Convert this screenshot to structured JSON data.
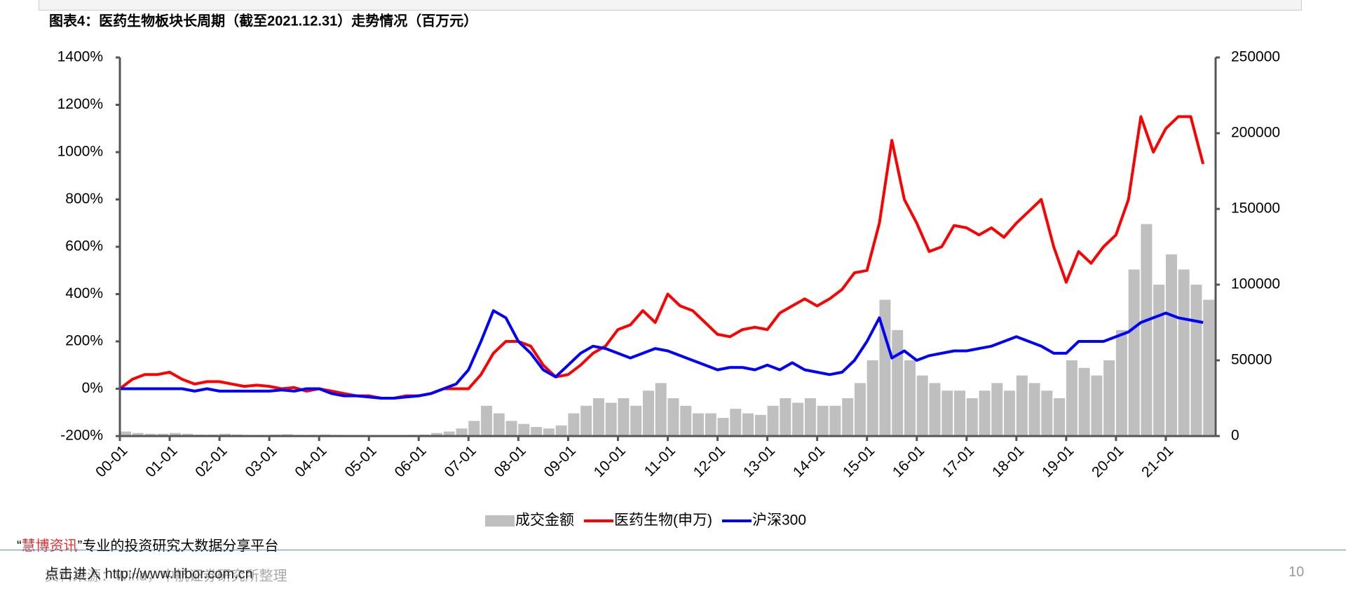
{
  "chart_data": {
    "type": "line",
    "title": "图表4：医药生物板块长周期（截至2021.12.31）走势情况（百万元）",
    "categories": [
      "00-01",
      null,
      null,
      null,
      "01-01",
      null,
      null,
      null,
      "02-01",
      null,
      null,
      null,
      "03-01",
      null,
      null,
      null,
      "04-01",
      null,
      null,
      null,
      "05-01",
      null,
      null,
      null,
      "06-01",
      null,
      null,
      null,
      "07-01",
      null,
      null,
      null,
      "08-01",
      null,
      null,
      null,
      "09-01",
      null,
      null,
      null,
      "10-01",
      null,
      null,
      null,
      "11-01",
      null,
      null,
      null,
      "12-01",
      null,
      null,
      null,
      "13-01",
      null,
      null,
      null,
      "14-01",
      null,
      null,
      null,
      "15-01",
      null,
      null,
      null,
      "16-01",
      null,
      null,
      null,
      "17-01",
      null,
      null,
      null,
      "18-01",
      null,
      null,
      null,
      "19-01",
      null,
      null,
      null,
      "20-01",
      null,
      null,
      null,
      "21-01",
      null,
      null,
      null
    ],
    "series": [
      {
        "name": "成交金额",
        "type": "bar",
        "axis": "y2",
        "color": "#bfbfbf",
        "values": [
          3000,
          2000,
          1500,
          1500,
          2000,
          1500,
          1000,
          1000,
          1500,
          1000,
          800,
          800,
          1000,
          1200,
          800,
          800,
          1000,
          800,
          600,
          600,
          500,
          500,
          600,
          800,
          1000,
          2000,
          3000,
          5000,
          10000,
          20000,
          15000,
          10000,
          8000,
          6000,
          5000,
          7000,
          15000,
          20000,
          25000,
          22000,
          25000,
          20000,
          30000,
          35000,
          25000,
          20000,
          15000,
          15000,
          12000,
          18000,
          15000,
          14000,
          20000,
          25000,
          22000,
          25000,
          20000,
          20000,
          25000,
          35000,
          50000,
          90000,
          70000,
          50000,
          40000,
          35000,
          30000,
          30000,
          25000,
          30000,
          35000,
          30000,
          40000,
          35000,
          30000,
          25000,
          50000,
          45000,
          40000,
          50000,
          70000,
          110000,
          140000,
          100000,
          120000,
          110000,
          100000,
          90000
        ]
      },
      {
        "name": "医药生物(申万)",
        "type": "line",
        "color": "#ff0000",
        "values": [
          0,
          40,
          60,
          60,
          70,
          40,
          20,
          30,
          30,
          20,
          10,
          15,
          10,
          0,
          5,
          -10,
          0,
          -10,
          -20,
          -30,
          -30,
          -40,
          -40,
          -30,
          -30,
          -20,
          0,
          0,
          0,
          60,
          150,
          200,
          200,
          180,
          100,
          50,
          60,
          100,
          150,
          180,
          250,
          270,
          330,
          280,
          400,
          350,
          330,
          280,
          230,
          220,
          250,
          260,
          250,
          320,
          350,
          380,
          350,
          380,
          420,
          490,
          500,
          700,
          1050,
          800,
          700,
          580,
          600,
          690,
          680,
          650,
          680,
          640,
          700,
          750,
          800,
          600,
          450,
          580,
          530,
          600,
          650,
          800,
          1150,
          1000,
          1100,
          1150,
          1150,
          950
        ]
      },
      {
        "name": "沪深300",
        "type": "line",
        "color": "#0000ff",
        "values": [
          0,
          0,
          0,
          0,
          0,
          0,
          -10,
          0,
          -10,
          -10,
          -10,
          -10,
          -10,
          -5,
          -10,
          0,
          0,
          -20,
          -30,
          -30,
          -35,
          -40,
          -40,
          -35,
          -30,
          -20,
          0,
          20,
          80,
          200,
          330,
          300,
          200,
          150,
          80,
          50,
          100,
          150,
          180,
          170,
          150,
          130,
          150,
          170,
          160,
          140,
          120,
          100,
          80,
          90,
          90,
          80,
          100,
          80,
          110,
          80,
          70,
          60,
          70,
          120,
          200,
          300,
          130,
          160,
          120,
          140,
          150,
          160,
          160,
          170,
          180,
          200,
          220,
          200,
          180,
          150,
          150,
          200,
          200,
          200,
          220,
          240,
          280,
          300,
          320,
          300,
          290,
          280
        ]
      }
    ],
    "ylim": [
      -200,
      1400
    ],
    "yticks": [
      {
        "value": -200,
        "label": "-200%"
      },
      {
        "value": 0,
        "label": "0%"
      },
      {
        "value": 200,
        "label": "200%"
      },
      {
        "value": 400,
        "label": "400%"
      },
      {
        "value": 600,
        "label": "600%"
      },
      {
        "value": 800,
        "label": "800%"
      },
      {
        "value": 1000,
        "label": "1000%"
      },
      {
        "value": 1200,
        "label": "1200%"
      },
      {
        "value": 1400,
        "label": "1400%"
      }
    ],
    "y2lim": [
      0,
      250000
    ],
    "y2ticks": [
      0,
      50000,
      100000,
      150000,
      200000,
      250000
    ],
    "grid": false,
    "legend": "bottom"
  },
  "footer": {
    "tagline": [
      "“",
      "慧博资讯",
      "”专业的投资研究大数据分享平台"
    ],
    "link_prompt": "点击进入",
    "link": "http://www.hibor.com.cn",
    "source": "资料来源：Wind，中航证券研究所整理",
    "page_number": "10"
  }
}
